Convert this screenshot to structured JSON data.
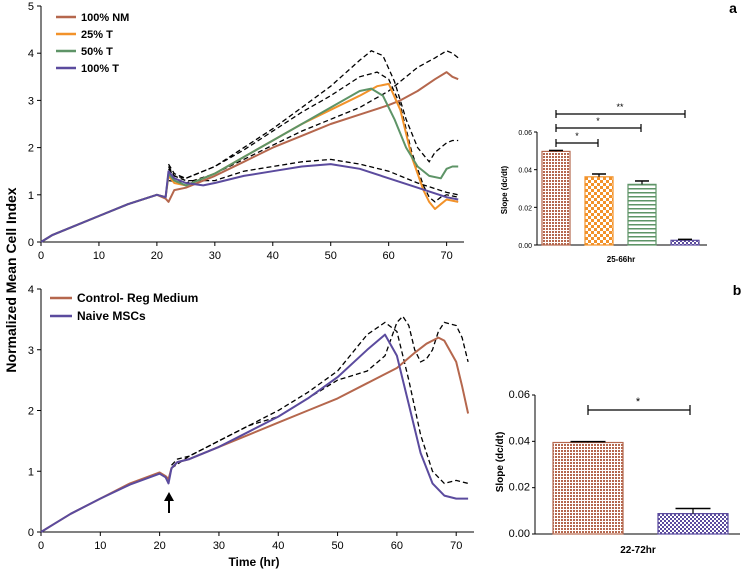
{
  "figure": {
    "y_label": "Normalized Mean Cell Index",
    "x_label": "Time (hr)",
    "panel_a": "a",
    "panel_b": "b"
  },
  "colors": {
    "nm": "#b5674d",
    "t25": "#f2922a",
    "t50": "#5e9467",
    "t100": "#5b4b9e",
    "dash": "#000000"
  },
  "chart_data": [
    {
      "id": "top_line",
      "type": "line",
      "xlabel": "",
      "ylabel": "Normalized Mean Cell Index",
      "xlim": [
        0,
        73
      ],
      "ylim": [
        0,
        5
      ],
      "xticks": [
        0,
        10,
        20,
        30,
        40,
        50,
        60,
        70
      ],
      "yticks": [
        0,
        1,
        2,
        3,
        4,
        5
      ],
      "legend": [
        "100% NM",
        "25% T",
        "50% T",
        "100% T"
      ],
      "series": [
        {
          "name": "100% NM",
          "color": "#b5674d",
          "x": [
            0,
            2,
            5,
            10,
            15,
            20,
            21.5,
            22,
            23,
            25,
            30,
            35,
            40,
            45,
            50,
            55,
            60,
            62,
            65,
            68,
            70,
            71,
            72
          ],
          "y": [
            0,
            0.15,
            0.3,
            0.55,
            0.8,
            1.0,
            0.92,
            0.85,
            1.1,
            1.15,
            1.4,
            1.7,
            2.0,
            2.25,
            2.5,
            2.7,
            2.9,
            3.0,
            3.2,
            3.45,
            3.6,
            3.5,
            3.45
          ]
        },
        {
          "name": "25% T",
          "color": "#f2922a",
          "x": [
            0,
            2,
            5,
            10,
            15,
            20,
            21.5,
            22,
            23,
            25,
            30,
            35,
            40,
            45,
            50,
            55,
            58,
            60,
            62,
            64,
            66,
            67,
            68,
            69,
            70,
            72
          ],
          "y": [
            0,
            0.15,
            0.3,
            0.55,
            0.8,
            1.0,
            0.95,
            1.4,
            1.25,
            1.2,
            1.45,
            1.8,
            2.15,
            2.5,
            2.8,
            3.1,
            3.3,
            3.35,
            2.8,
            1.8,
            1.1,
            0.85,
            0.7,
            0.8,
            0.9,
            0.85
          ]
        },
        {
          "name": "50% T",
          "color": "#5e9467",
          "x": [
            0,
            2,
            5,
            10,
            15,
            20,
            21.5,
            22,
            23,
            25,
            30,
            35,
            40,
            45,
            50,
            55,
            57,
            59,
            61,
            63,
            65,
            67,
            69,
            70,
            71,
            72
          ],
          "y": [
            0,
            0.15,
            0.3,
            0.55,
            0.8,
            1.0,
            0.95,
            1.45,
            1.3,
            1.2,
            1.45,
            1.8,
            2.15,
            2.5,
            2.85,
            3.2,
            3.25,
            3.1,
            2.6,
            2.0,
            1.6,
            1.4,
            1.35,
            1.55,
            1.6,
            1.6
          ]
        },
        {
          "name": "100% T",
          "color": "#5b4b9e",
          "x": [
            0,
            2,
            5,
            10,
            15,
            20,
            21.5,
            22,
            23,
            25,
            28,
            30,
            35,
            40,
            45,
            50,
            55,
            60,
            65,
            70,
            72
          ],
          "y": [
            0,
            0.15,
            0.3,
            0.55,
            0.8,
            1.0,
            0.95,
            1.5,
            1.35,
            1.25,
            1.2,
            1.25,
            1.4,
            1.5,
            1.6,
            1.65,
            1.55,
            1.35,
            1.15,
            0.95,
            0.9
          ]
        }
      ],
      "bands": [
        {
          "x": [
            22,
            23,
            25,
            30,
            35,
            40,
            45,
            50,
            55,
            58,
            60,
            62,
            64,
            66,
            67,
            68,
            69,
            70,
            72
          ],
          "y": [
            1.6,
            1.4,
            1.35,
            1.6,
            1.95,
            2.35,
            2.75,
            3.1,
            3.5,
            3.6,
            3.45,
            2.9,
            1.9,
            1.2,
            0.95,
            0.85,
            0.95,
            1.0,
            0.95
          ]
        },
        {
          "x": [
            22,
            23,
            25,
            30,
            35,
            40,
            45,
            50,
            55,
            57,
            59,
            61,
            63,
            65,
            67,
            68,
            69,
            70,
            71,
            72
          ],
          "y": [
            1.65,
            1.45,
            1.35,
            1.6,
            2.0,
            2.4,
            2.85,
            3.3,
            3.85,
            4.05,
            3.95,
            3.4,
            2.6,
            2.0,
            1.7,
            1.9,
            2.0,
            2.1,
            2.15,
            2.15
          ]
        },
        {
          "x": [
            22,
            23,
            25,
            30,
            35,
            40,
            45,
            50,
            55,
            60,
            65,
            70,
            72
          ],
          "y": [
            1.55,
            1.4,
            1.3,
            1.3,
            1.5,
            1.6,
            1.7,
            1.75,
            1.65,
            1.5,
            1.25,
            1.05,
            1.0
          ]
        },
        {
          "x": [
            22,
            25,
            30,
            35,
            40,
            45,
            50,
            55,
            60,
            62,
            65,
            68,
            70,
            71,
            72
          ],
          "y": [
            1.3,
            1.25,
            1.45,
            1.75,
            2.05,
            2.35,
            2.6,
            2.85,
            3.2,
            3.4,
            3.7,
            3.9,
            4.05,
            4.0,
            3.9
          ]
        }
      ]
    },
    {
      "id": "top_bar",
      "type": "bar",
      "categories": [
        "100% NM",
        "25% T",
        "50% T",
        "100% T"
      ],
      "values": [
        0.0497,
        0.0362,
        0.0322,
        0.0025
      ],
      "errors": [
        0.0005,
        0.0015,
        0.0018,
        0.0005
      ],
      "ylabel": "Slope (dc/dt)",
      "xlabel": "25-66hr",
      "ylim": [
        0,
        0.06
      ],
      "yticks": [
        "0.00",
        "0.02",
        "0.04",
        "0.06"
      ],
      "annotations": [
        "*",
        "*",
        "**"
      ]
    },
    {
      "id": "bottom_line",
      "type": "line",
      "xlabel": "Time (hr)",
      "ylabel": "Normalized Mean Cell Index",
      "xlim": [
        0,
        73
      ],
      "ylim": [
        0,
        4
      ],
      "xticks": [
        0,
        10,
        20,
        30,
        40,
        50,
        60,
        70
      ],
      "yticks": [
        0,
        1,
        2,
        3,
        4
      ],
      "legend": [
        "Control- Reg Medium",
        "Naive MSCs"
      ],
      "series": [
        {
          "name": "Control- Reg Medium",
          "color": "#b5674d",
          "x": [
            0,
            2,
            5,
            10,
            15,
            20,
            21,
            21.5,
            22,
            23,
            25,
            30,
            35,
            40,
            45,
            50,
            55,
            60,
            63,
            65,
            67,
            68,
            70,
            71,
            72
          ],
          "y": [
            0,
            0.12,
            0.3,
            0.55,
            0.8,
            0.98,
            0.92,
            0.87,
            1.05,
            1.15,
            1.2,
            1.4,
            1.6,
            1.8,
            2.0,
            2.2,
            2.45,
            2.7,
            2.95,
            3.1,
            3.2,
            3.15,
            2.8,
            2.4,
            1.95
          ]
        },
        {
          "name": "Naive MSCs",
          "color": "#5b4b9e",
          "x": [
            0,
            2,
            5,
            10,
            15,
            20,
            21,
            21.5,
            22,
            23,
            25,
            30,
            35,
            40,
            45,
            50,
            55,
            58,
            60,
            62,
            64,
            66,
            68,
            70,
            71,
            72
          ],
          "y": [
            0,
            0.12,
            0.3,
            0.55,
            0.78,
            0.96,
            0.9,
            0.8,
            1.05,
            1.15,
            1.2,
            1.4,
            1.65,
            1.9,
            2.2,
            2.55,
            3.0,
            3.25,
            2.9,
            2.1,
            1.3,
            0.8,
            0.6,
            0.55,
            0.55,
            0.55
          ]
        }
      ],
      "bands": [
        {
          "x": [
            22,
            23,
            25,
            30,
            35,
            40,
            45,
            50,
            55,
            58,
            60,
            62,
            64,
            66,
            68,
            70,
            72
          ],
          "y": [
            1.1,
            1.2,
            1.25,
            1.5,
            1.75,
            2.0,
            2.3,
            2.65,
            3.25,
            3.45,
            3.3,
            2.5,
            1.6,
            1.0,
            0.8,
            0.85,
            0.8
          ]
        },
        {
          "x": [
            22,
            25,
            30,
            35,
            40,
            45,
            50,
            55,
            58,
            60,
            61,
            62,
            63,
            64,
            65,
            66,
            67,
            68,
            70,
            71,
            72
          ],
          "y": [
            1.05,
            1.25,
            1.5,
            1.75,
            1.9,
            2.2,
            2.5,
            2.65,
            2.9,
            3.45,
            3.55,
            3.4,
            3.0,
            2.8,
            2.85,
            3.0,
            3.3,
            3.45,
            3.4,
            3.2,
            2.8
          ]
        }
      ],
      "annotations": [
        "↑"
      ]
    },
    {
      "id": "bottom_bar",
      "type": "bar",
      "categories": [
        "Control- Reg Medium",
        "Naive MSCs"
      ],
      "values": [
        0.0395,
        0.0088
      ],
      "errors": [
        0.0004,
        0.0022
      ],
      "ylabel": "Slope (dc/dt)",
      "xlabel": "22-72hr",
      "ylim": [
        0,
        0.06
      ],
      "yticks": [
        "0.00",
        "0.02",
        "0.04",
        "0.06"
      ],
      "annotations": [
        "*"
      ]
    }
  ]
}
